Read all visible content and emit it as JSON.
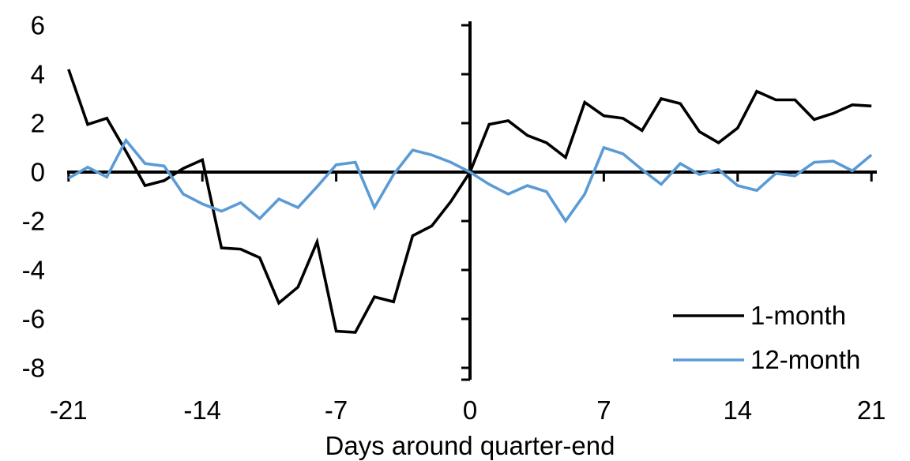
{
  "figure": {
    "background_color": "#ffffff",
    "x_axis_title": "Days around quarter-end"
  },
  "chart_data": {
    "type": "line",
    "title": "",
    "xlabel": "Days around quarter-end",
    "ylabel": "",
    "xlim": [
      -21,
      21
    ],
    "ylim": [
      -8.5,
      6.3
    ],
    "grid": false,
    "legend_position": "bottom-right",
    "x_ticks": [
      -21,
      -14,
      -7,
      0,
      7,
      14,
      21
    ],
    "x_tick_labels": [
      "-21",
      "-14",
      "-7",
      "0",
      "7",
      "14",
      "21"
    ],
    "y_ticks": [
      6,
      4,
      2,
      0,
      -2,
      -4,
      -6,
      -8
    ],
    "y_tick_labels": [
      "6",
      "4",
      "2",
      "0",
      "-2",
      "-4",
      "-6",
      "-8"
    ],
    "axis_color": "#000000",
    "x": [
      -21,
      -20,
      -19,
      -18,
      -17,
      -16,
      -15,
      -14,
      -13,
      -12,
      -11,
      -10,
      -9,
      -8,
      -7,
      -6,
      -5,
      -4,
      -3,
      -2,
      -1,
      0,
      1,
      2,
      3,
      4,
      5,
      6,
      7,
      8,
      9,
      10,
      11,
      12,
      13,
      14,
      15,
      16,
      17,
      18,
      19,
      20,
      21
    ],
    "series": [
      {
        "name": "1-month",
        "color": "#000000",
        "values": [
          4.2,
          1.95,
          2.2,
          0.85,
          -0.55,
          -0.35,
          0.15,
          0.5,
          -3.1,
          -3.15,
          -3.5,
          -5.35,
          -4.7,
          -2.85,
          -6.5,
          -6.55,
          -5.1,
          -5.3,
          -2.6,
          -2.2,
          -1.2,
          0,
          1.95,
          2.1,
          1.5,
          1.2,
          0.6,
          2.85,
          2.3,
          2.2,
          1.7,
          3.0,
          2.8,
          1.65,
          1.2,
          1.8,
          3.3,
          2.95,
          2.95,
          2.15,
          2.4,
          2.75,
          2.7
        ]
      },
      {
        "name": "12-month",
        "color": "#5B9BD5",
        "values": [
          -0.25,
          0.2,
          -0.2,
          1.3,
          0.35,
          0.25,
          -0.9,
          -1.3,
          -1.6,
          -1.25,
          -1.9,
          -1.1,
          -1.45,
          -0.6,
          0.3,
          0.4,
          -1.45,
          -0.1,
          0.9,
          0.7,
          0.4,
          0,
          -0.5,
          -0.9,
          -0.55,
          -0.8,
          -2.0,
          -0.9,
          1.0,
          0.75,
          0.1,
          -0.5,
          0.35,
          -0.1,
          0.1,
          -0.55,
          -0.75,
          -0.05,
          -0.15,
          0.4,
          0.45,
          0.05,
          0.7
        ]
      }
    ]
  },
  "legend": {
    "items": [
      {
        "label": "1-month",
        "color": "#000000"
      },
      {
        "label": "12-month",
        "color": "#5B9BD5"
      }
    ]
  }
}
